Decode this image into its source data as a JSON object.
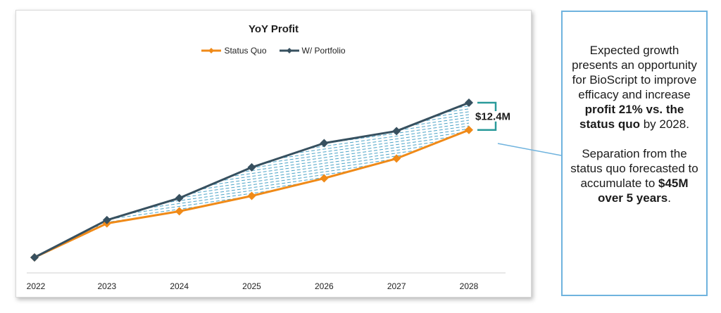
{
  "chart_data": {
    "type": "line",
    "title": "YoY Profit",
    "categories": [
      "2022",
      "2023",
      "2024",
      "2025",
      "2026",
      "2027",
      "2028"
    ],
    "series": [
      {
        "name": "Status Quo",
        "color": "#f08a18",
        "values": [
          0,
          15.5,
          21,
          28,
          36,
          45,
          58
        ]
      },
      {
        "name": "W/ Portfolio",
        "color": "#37505f",
        "values": [
          0,
          17,
          27,
          41,
          52,
          57.5,
          70.4
        ]
      }
    ],
    "ylim": [
      0,
      80
    ],
    "grid": false,
    "legend_position": "top-center",
    "gap_fill": "hatched",
    "annotation": {
      "text": "$12.4M",
      "color": "#2a9a9a"
    }
  },
  "callout": {
    "p1_pre": "Expected growth presents an opportunity for BioScript to improve efficacy and increase ",
    "p1_bold": "profit 21% vs. the status quo",
    "p1_post": " by  2028.",
    "p2_pre": "Separation from the status quo forecasted to accumulate to ",
    "p2_bold": "$45M over 5 years",
    "p2_post": "."
  },
  "colors": {
    "callout_border": "#6fb3de",
    "leader_line": "#6fb3de"
  }
}
